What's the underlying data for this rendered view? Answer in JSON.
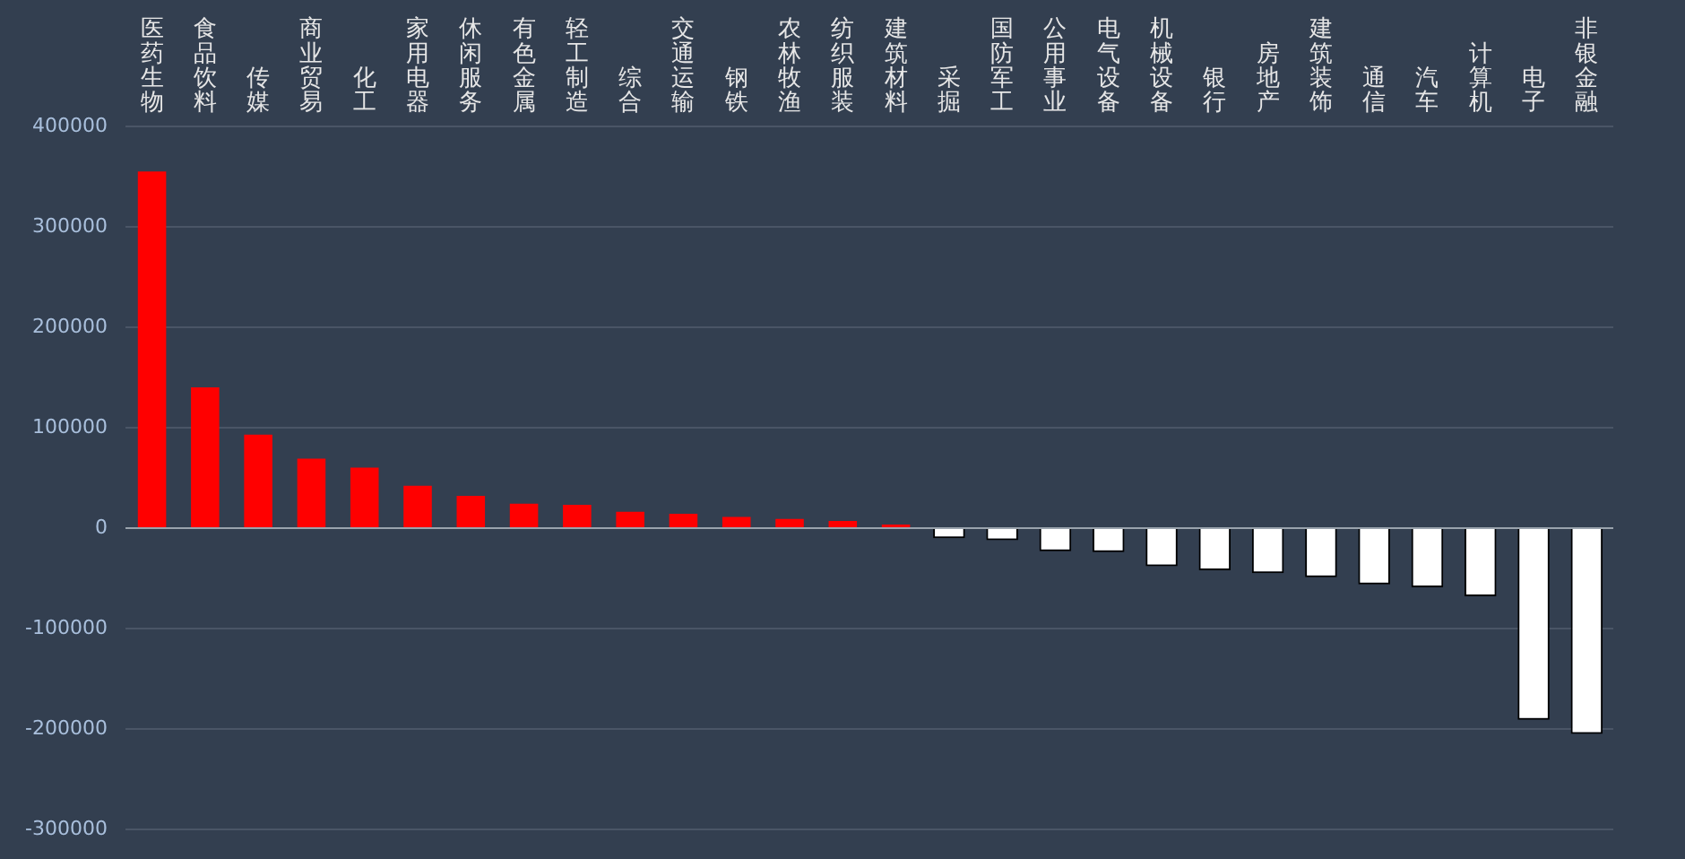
{
  "chart_data": {
    "type": "bar",
    "categories": [
      "医药生物",
      "食品饮料",
      "传媒",
      "商业贸易",
      "化工",
      "家用电器",
      "休闲服务",
      "有色金属",
      "轻工制造",
      "综合",
      "交通运输",
      "钢铁",
      "农林牧渔",
      "纺织服装",
      "建筑材料",
      "采掘",
      "国防军工",
      "公用事业",
      "电气设备",
      "机械设备",
      "银行",
      "房地产",
      "建筑装饰",
      "通信",
      "汽车",
      "计算机",
      "电子",
      "非银金融"
    ],
    "values": [
      357000,
      142000,
      95000,
      71000,
      62000,
      44000,
      34000,
      26000,
      25000,
      18000,
      16000,
      13000,
      11000,
      9000,
      2000,
      -10000,
      -12000,
      -23000,
      -24000,
      -38000,
      -42000,
      -45000,
      -49000,
      -56000,
      -59000,
      -68000,
      -191000,
      -205000
    ],
    "colors": [
      "#ff0000",
      "#ff0000",
      "#ff0000",
      "#ff0000",
      "#ff0000",
      "#ff0000",
      "#ff0000",
      "#ff0000",
      "#ff0000",
      "#ff0000",
      "#ff0000",
      "#ff0000",
      "#ff0000",
      "#ff0000",
      "#ff0000",
      "#ffffff",
      "#ffffff",
      "#ffffff",
      "#ffffff",
      "#ffffff",
      "#ffffff",
      "#ffffff",
      "#ffffff",
      "#ffffff",
      "#ffffff",
      "#ffffff",
      "#ffffff",
      "#ffffff"
    ],
    "ylim": [
      -300000,
      400000
    ],
    "yticks": [
      -300000,
      -200000,
      -100000,
      0,
      100000,
      200000,
      300000,
      400000
    ],
    "grid": "y",
    "legend": false
  }
}
